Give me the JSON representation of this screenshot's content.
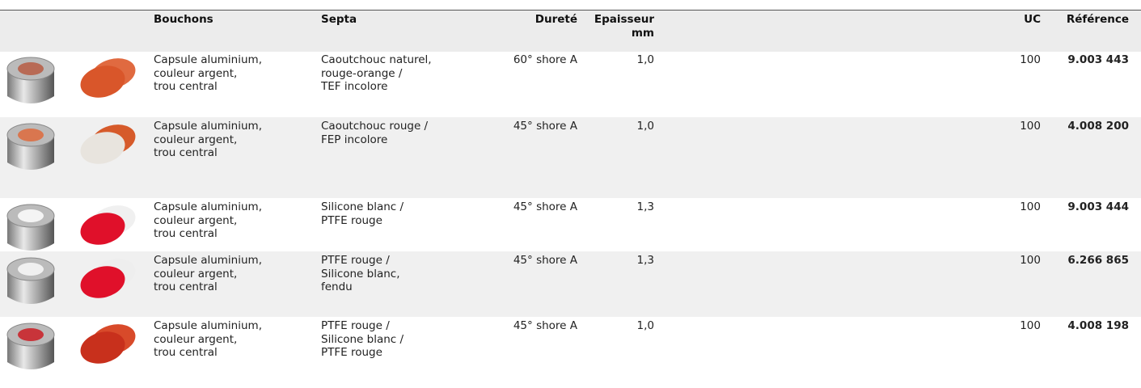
{
  "table": {
    "header": [
      "Bouchons",
      "Septa",
      "Dureté",
      "Epaisseur\nmm",
      "UC",
      "Référence"
    ],
    "rows": [
      [
        "Capsule aluminium,\ncouleur argent,\ntrou central",
        "Caoutchouc naturel,\nrouge-orange /\nTEF incolore",
        "60° shore A",
        "1,0",
        "100",
        "9.003 443"
      ],
      [
        "Capsule aluminium,\ncouleur argent,\ntrou central",
        "Caoutchouc rouge /\nFEP incolore",
        "45° shore A",
        "1,0",
        "100",
        "4.008 200"
      ],
      [
        "Capsule aluminium,\ncouleur argent,\ntrou central",
        "Silicone blanc /\nPTFE rouge",
        "45° shore A",
        "1,3",
        "100",
        "9.003 444"
      ],
      [
        "Capsule aluminium,\ncouleur argent,\ntrou central",
        "PTFE rouge /\nSilicone blanc,\nfendu",
        "45° shore A",
        "1,3",
        "100",
        "6.266 865"
      ],
      [
        "Capsule aluminium,\ncouleur argent,\ntrou central",
        "PTFE rouge /\nSilicone blanc /\nPTFE rouge",
        "45° shore A",
        "1,0",
        "100",
        "4.008 198"
      ]
    ]
  }
}
